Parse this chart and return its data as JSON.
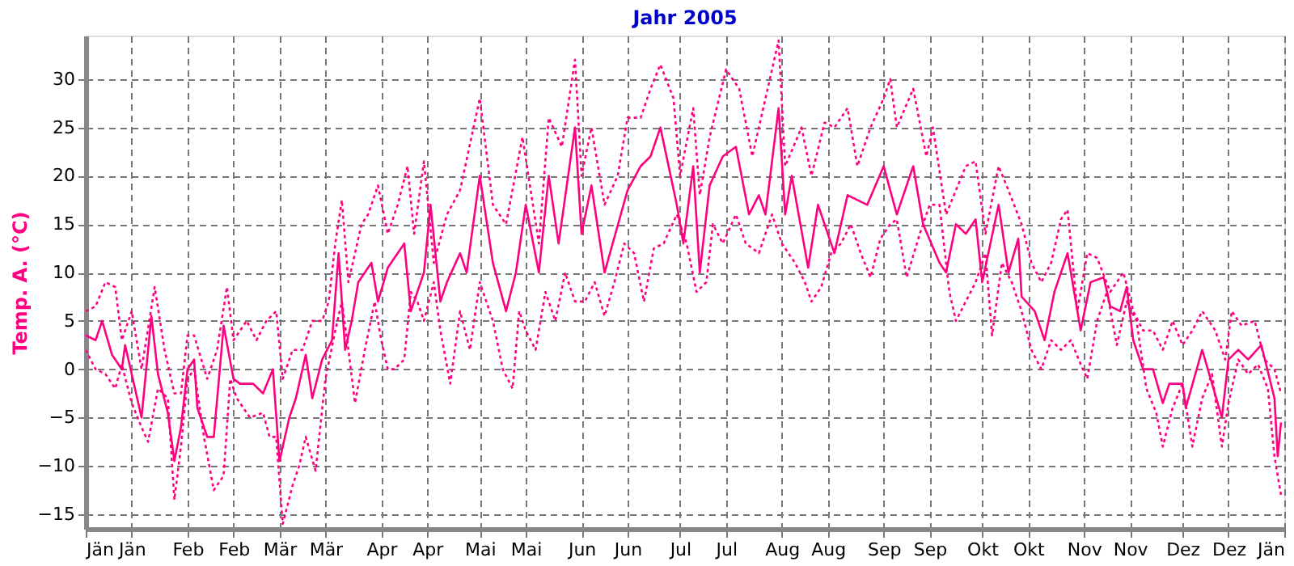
{
  "chart_data": {
    "type": "line",
    "title": "Jahr 2005",
    "ylabel": "Temp. A. (°C)",
    "xlim": [
      "2005-01-01",
      "2006-01-01"
    ],
    "ylim": [
      -16.5,
      34.5
    ],
    "yticks": [
      -15,
      -10,
      -5,
      0,
      5,
      10,
      15,
      20,
      25,
      30
    ],
    "xticks": [
      {
        "value": "2005-01-01",
        "label": "Jän"
      },
      {
        "value": "2005-01-15",
        "label": "Jän"
      },
      {
        "value": "2005-02-01",
        "label": "Feb"
      },
      {
        "value": "2005-02-15",
        "label": "Feb"
      },
      {
        "value": "2005-03-01",
        "label": "Mär"
      },
      {
        "value": "2005-03-15",
        "label": "Mär"
      },
      {
        "value": "2005-04-01",
        "label": "Apr"
      },
      {
        "value": "2005-04-15",
        "label": "Apr"
      },
      {
        "value": "2005-05-01",
        "label": "Mai"
      },
      {
        "value": "2005-05-15",
        "label": "Mai"
      },
      {
        "value": "2005-06-01",
        "label": "Jun"
      },
      {
        "value": "2005-06-15",
        "label": "Jun"
      },
      {
        "value": "2005-07-01",
        "label": "Jul"
      },
      {
        "value": "2005-07-15",
        "label": "Jul"
      },
      {
        "value": "2005-08-01",
        "label": "Aug"
      },
      {
        "value": "2005-08-15",
        "label": "Aug"
      },
      {
        "value": "2005-09-01",
        "label": "Sep"
      },
      {
        "value": "2005-09-15",
        "label": "Sep"
      },
      {
        "value": "2005-10-01",
        "label": "Okt"
      },
      {
        "value": "2005-10-15",
        "label": "Okt"
      },
      {
        "value": "2005-11-01",
        "label": "Nov"
      },
      {
        "value": "2005-11-15",
        "label": "Nov"
      },
      {
        "value": "2005-12-01",
        "label": "Dez"
      },
      {
        "value": "2005-12-15",
        "label": "Dez"
      },
      {
        "value": "2006-01-01",
        "label": "Jän"
      }
    ],
    "grid": true,
    "legend": false,
    "series": [
      {
        "color": "#ff0080",
        "line_style": "dotted",
        "x": [
          "2005-01-01",
          "2005-01-04",
          "2005-01-07",
          "2005-01-10",
          "2005-01-12",
          "2005-01-15",
          "2005-01-18",
          "2005-01-22",
          "2005-01-25",
          "2005-01-28",
          "2005-01-30",
          "2005-02-01",
          "2005-02-03",
          "2005-02-07",
          "2005-02-10",
          "2005-02-13",
          "2005-02-15",
          "2005-02-19",
          "2005-02-22",
          "2005-02-25",
          "2005-02-28",
          "2005-03-02",
          "2005-03-05",
          "2005-03-08",
          "2005-03-11",
          "2005-03-14",
          "2005-03-16",
          "2005-03-18",
          "2005-03-20",
          "2005-03-22",
          "2005-03-26",
          "2005-03-28",
          "2005-03-31",
          "2005-04-03",
          "2005-04-06",
          "2005-04-09",
          "2005-04-11",
          "2005-04-14",
          "2005-04-17",
          "2005-04-21",
          "2005-04-25",
          "2005-05-01",
          "2005-05-05",
          "2005-05-09",
          "2005-05-14",
          "2005-05-19",
          "2005-05-22",
          "2005-05-26",
          "2005-05-30",
          "2005-06-01",
          "2005-06-04",
          "2005-06-08",
          "2005-06-12",
          "2005-06-15",
          "2005-06-19",
          "2005-06-22",
          "2005-06-25",
          "2005-06-29",
          "2005-07-01",
          "2005-07-05",
          "2005-07-07",
          "2005-07-10",
          "2005-07-15",
          "2005-07-19",
          "2005-07-23",
          "2005-07-25",
          "2005-07-31",
          "2005-08-02",
          "2005-08-07",
          "2005-08-10",
          "2005-08-14",
          "2005-08-17",
          "2005-08-21",
          "2005-08-24",
          "2005-08-28",
          "2005-09-01",
          "2005-09-03",
          "2005-09-05",
          "2005-09-10",
          "2005-09-14",
          "2005-09-16",
          "2005-09-20",
          "2005-09-26",
          "2005-09-29",
          "2005-10-02",
          "2005-10-06",
          "2005-10-09",
          "2005-10-13",
          "2005-10-16",
          "2005-10-19",
          "2005-10-22",
          "2005-10-25",
          "2005-10-27",
          "2005-10-30",
          "2005-11-02",
          "2005-11-05",
          "2005-11-09",
          "2005-11-13",
          "2005-11-16",
          "2005-11-19",
          "2005-11-22",
          "2005-11-25",
          "2005-11-28",
          "2005-12-01",
          "2005-12-04",
          "2005-12-07",
          "2005-12-11",
          "2005-12-14",
          "2005-12-16",
          "2005-12-19",
          "2005-12-23",
          "2005-12-26",
          "2005-12-29",
          "2005-12-31"
        ],
        "values": [
          6,
          6.5,
          9,
          8.5,
          3,
          6,
          0,
          8.5,
          2,
          -2.5,
          -2.5,
          3.5,
          3.5,
          -1,
          2,
          8.5,
          3,
          5,
          3,
          5,
          6,
          -1,
          2,
          2,
          5,
          5,
          7,
          13,
          17.5,
          9,
          15,
          16,
          19,
          14,
          17,
          21,
          14,
          21.5,
          11,
          16,
          18.5,
          28,
          17,
          15,
          24,
          13,
          26,
          23,
          32,
          20,
          25,
          17,
          20,
          26,
          26,
          29,
          31.5,
          28,
          20,
          27,
          18,
          24,
          31,
          29,
          22,
          25,
          34,
          21,
          25,
          20,
          25.5,
          25,
          27,
          21,
          25,
          28,
          30,
          25,
          29,
          22,
          25,
          16,
          21,
          21.5,
          14,
          21,
          18.5,
          15,
          11,
          9,
          11,
          15.5,
          16.5,
          6,
          12,
          11.5,
          8,
          10,
          6,
          4,
          4,
          2,
          5,
          2.5,
          4,
          6,
          4,
          1,
          6,
          4.5,
          5,
          1,
          0,
          -2.5
        ]
      },
      {
        "color": "#ff0080",
        "line_style": "solid",
        "x": [
          "2005-01-01",
          "2005-01-04",
          "2005-01-06",
          "2005-01-09",
          "2005-01-12",
          "2005-01-13",
          "2005-01-16",
          "2005-01-18",
          "2005-01-21",
          "2005-01-23",
          "2005-01-26",
          "2005-01-28",
          "2005-01-30",
          "2005-02-01",
          "2005-02-03",
          "2005-02-04",
          "2005-02-07",
          "2005-02-09",
          "2005-02-12",
          "2005-02-15",
          "2005-02-17",
          "2005-02-21",
          "2005-02-24",
          "2005-02-27",
          "2005-03-01",
          "2005-03-04",
          "2005-03-06",
          "2005-03-09",
          "2005-03-11",
          "2005-03-14",
          "2005-03-17",
          "2005-03-19",
          "2005-03-21",
          "2005-03-23",
          "2005-03-25",
          "2005-03-29",
          "2005-03-31",
          "2005-04-03",
          "2005-04-08",
          "2005-04-10",
          "2005-04-14",
          "2005-04-16",
          "2005-04-19",
          "2005-04-21",
          "2005-04-25",
          "2005-04-27",
          "2005-05-01",
          "2005-05-05",
          "2005-05-09",
          "2005-05-12",
          "2005-05-15",
          "2005-05-19",
          "2005-05-22",
          "2005-05-25",
          "2005-05-30",
          "2005-06-01",
          "2005-06-04",
          "2005-06-08",
          "2005-06-15",
          "2005-06-19",
          "2005-06-22",
          "2005-06-25",
          "2005-06-30",
          "2005-07-02",
          "2005-07-05",
          "2005-07-07",
          "2005-07-10",
          "2005-07-14",
          "2005-07-18",
          "2005-07-22",
          "2005-07-25",
          "2005-07-27",
          "2005-07-31",
          "2005-08-02",
          "2005-08-04",
          "2005-08-09",
          "2005-08-12",
          "2005-08-17",
          "2005-08-21",
          "2005-08-27",
          "2005-09-01",
          "2005-09-05",
          "2005-09-07",
          "2005-09-10",
          "2005-09-13",
          "2005-09-18",
          "2005-09-20",
          "2005-09-23",
          "2005-09-26",
          "2005-09-29",
          "2005-10-01",
          "2005-10-06",
          "2005-10-09",
          "2005-10-12",
          "2005-10-13",
          "2005-10-17",
          "2005-10-20",
          "2005-10-23",
          "2005-10-27",
          "2005-10-31",
          "2005-11-03",
          "2005-11-07",
          "2005-11-09",
          "2005-11-12",
          "2005-11-14",
          "2005-11-16",
          "2005-11-19",
          "2005-11-22",
          "2005-11-25",
          "2005-11-27",
          "2005-12-01",
          "2005-12-02",
          "2005-12-07",
          "2005-12-13",
          "2005-12-15",
          "2005-12-18",
          "2005-12-21",
          "2005-12-25",
          "2005-12-29",
          "2005-12-30",
          "2005-12-31"
        ],
        "values": [
          3.5,
          3,
          5,
          1.5,
          0,
          2.5,
          -2,
          -5,
          5.5,
          -0.5,
          -4.5,
          -9.5,
          -6,
          0,
          1,
          -4,
          -7,
          -7,
          4.5,
          -1,
          -1.5,
          -1.5,
          -2.5,
          0,
          -9.5,
          -5,
          -3,
          1.5,
          -3,
          1,
          3,
          12,
          2,
          5,
          9,
          11,
          7,
          10.5,
          13,
          6,
          10,
          17,
          7,
          9,
          12,
          10,
          20,
          11,
          6,
          10,
          17,
          10,
          20,
          13,
          25,
          14,
          19,
          10,
          18.5,
          21,
          22,
          25,
          17,
          13,
          21,
          10,
          19,
          22,
          23,
          16,
          18,
          16,
          27,
          16,
          20,
          10.5,
          17,
          12,
          18,
          17,
          21,
          16,
          18,
          21,
          15,
          11,
          10,
          15,
          14,
          15.5,
          9,
          17,
          10,
          13.5,
          7.5,
          6,
          3,
          8,
          12,
          4,
          9,
          9.5,
          6.5,
          6,
          8.5,
          3,
          0,
          0,
          -3.5,
          -1.5,
          -1.5,
          -4,
          2,
          -5,
          1,
          2,
          1,
          2.5,
          -3,
          -9,
          -5.5
        ]
      },
      {
        "color": "#ff0080",
        "line_style": "dotted",
        "x": [
          "2005-01-01",
          "2005-01-04",
          "2005-01-07",
          "2005-01-10",
          "2005-01-12",
          "2005-01-15",
          "2005-01-18",
          "2005-01-20",
          "2005-01-23",
          "2005-01-26",
          "2005-01-28",
          "2005-01-30",
          "2005-02-01",
          "2005-02-03",
          "2005-02-06",
          "2005-02-09",
          "2005-02-12",
          "2005-02-14",
          "2005-02-16",
          "2005-02-20",
          "2005-02-24",
          "2005-02-26",
          "2005-02-28",
          "2005-03-02",
          "2005-03-05",
          "2005-03-07",
          "2005-03-09",
          "2005-03-12",
          "2005-03-15",
          "2005-03-18",
          "2005-03-20",
          "2005-03-22",
          "2005-03-24",
          "2005-03-27",
          "2005-03-30",
          "2005-04-01",
          "2005-04-03",
          "2005-04-05",
          "2005-04-08",
          "2005-04-10",
          "2005-04-12",
          "2005-04-14",
          "2005-04-17",
          "2005-04-19",
          "2005-04-22",
          "2005-04-25",
          "2005-04-28",
          "2005-05-01",
          "2005-05-05",
          "2005-05-08",
          "2005-05-11",
          "2005-05-13",
          "2005-05-15",
          "2005-05-18",
          "2005-05-21",
          "2005-05-24",
          "2005-05-27",
          "2005-05-30",
          "2005-06-02",
          "2005-06-05",
          "2005-06-08",
          "2005-06-11",
          "2005-06-14",
          "2005-06-17",
          "2005-06-20",
          "2005-06-23",
          "2005-06-26",
          "2005-06-30",
          "2005-07-03",
          "2005-07-06",
          "2005-07-09",
          "2005-07-11",
          "2005-07-14",
          "2005-07-18",
          "2005-07-21",
          "2005-07-25",
          "2005-07-29",
          "2005-08-01",
          "2005-08-05",
          "2005-08-08",
          "2005-08-10",
          "2005-08-13",
          "2005-08-16",
          "2005-08-19",
          "2005-08-22",
          "2005-08-25",
          "2005-08-28",
          "2005-08-31",
          "2005-09-03",
          "2005-09-05",
          "2005-09-08",
          "2005-09-12",
          "2005-09-15",
          "2005-09-18",
          "2005-09-21",
          "2005-09-23",
          "2005-09-26",
          "2005-09-29",
          "2005-10-02",
          "2005-10-04",
          "2005-10-07",
          "2005-10-10",
          "2005-10-13",
          "2005-10-16",
          "2005-10-19",
          "2005-10-22",
          "2005-10-25",
          "2005-10-28",
          "2005-10-31",
          "2005-11-02",
          "2005-11-05",
          "2005-11-08",
          "2005-11-11",
          "2005-11-14",
          "2005-11-17",
          "2005-11-20",
          "2005-11-23",
          "2005-11-25",
          "2005-11-28",
          "2005-12-01",
          "2005-12-04",
          "2005-12-07",
          "2005-12-10",
          "2005-12-13",
          "2005-12-15",
          "2005-12-18",
          "2005-12-21",
          "2005-12-24",
          "2005-12-27",
          "2005-12-29",
          "2005-12-31"
        ],
        "values": [
          2,
          0,
          -0.5,
          -2,
          0.5,
          -3.5,
          -6,
          -7.5,
          -2,
          -3,
          -13.5,
          -8,
          -1,
          0,
          -7,
          -12.5,
          -11,
          -1,
          -3,
          -5,
          -4.5,
          -7,
          -7,
          -16,
          -12,
          -10,
          -7,
          -10.5,
          -1,
          4,
          7,
          2,
          -3.5,
          2,
          7,
          3,
          0,
          0,
          1,
          8,
          7,
          5,
          9,
          4,
          -1.5,
          6,
          2,
          9,
          5,
          0,
          -2,
          6,
          4,
          2,
          8,
          5,
          10,
          7,
          7,
          9,
          5.5,
          9,
          13,
          12,
          7,
          12.5,
          13,
          16,
          13,
          8,
          9,
          15,
          13,
          16,
          13,
          12,
          16,
          13,
          11,
          9,
          7,
          8.5,
          12,
          13,
          15,
          12,
          9.5,
          13.5,
          15,
          15.5,
          9.5,
          14,
          17,
          17,
          8,
          5,
          7,
          9,
          12,
          3.5,
          11,
          9,
          6,
          2,
          0,
          3,
          2,
          3,
          0.5,
          -1,
          5,
          8,
          2.5,
          7,
          5,
          -2,
          -4.5,
          -8,
          -4,
          -1.5,
          -8,
          -3,
          -0.5,
          -8,
          -3.5,
          1,
          -0.5,
          0.5,
          -2,
          -9,
          -13
        ]
      }
    ]
  }
}
